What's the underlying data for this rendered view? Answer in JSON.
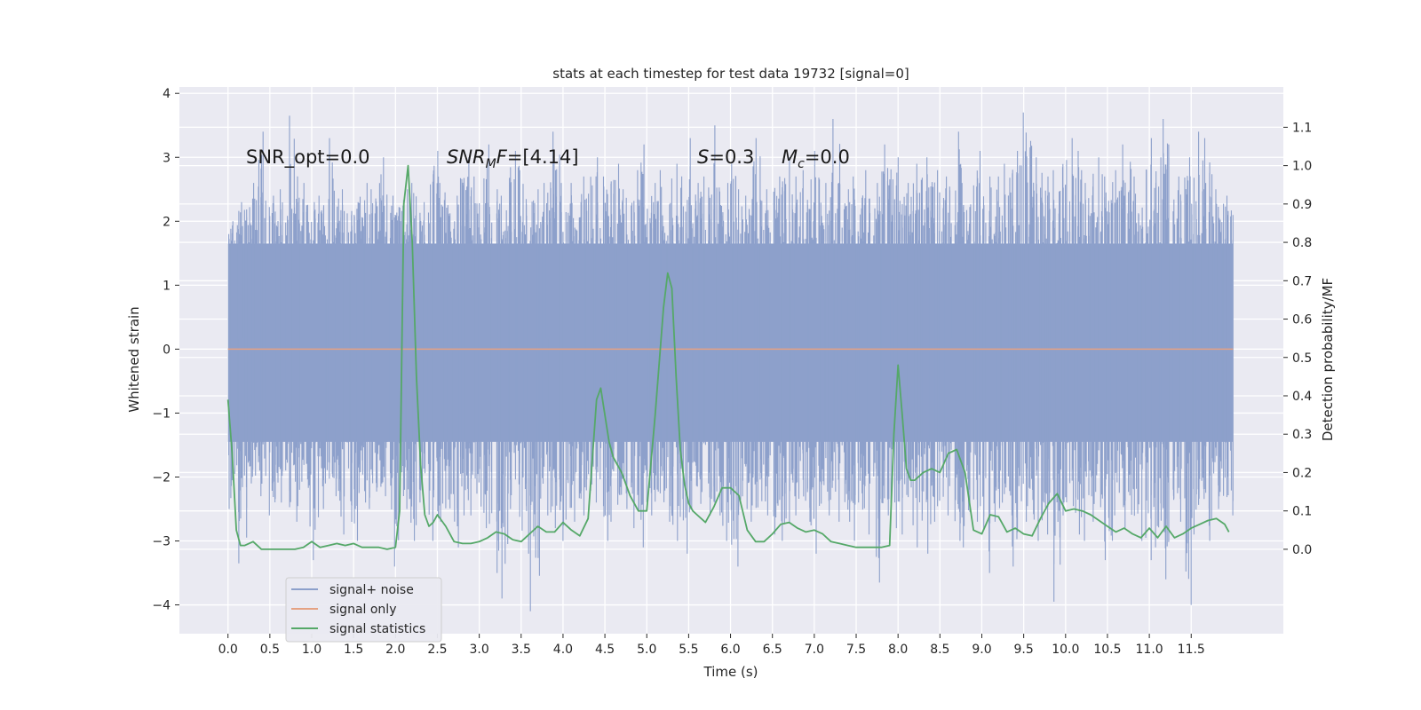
{
  "chart_data": {
    "type": "line",
    "title": "stats at each timestep for test data 19732 [signal=0]",
    "xlabel": "Time (s)",
    "ylabel": "Whitened strain",
    "y2label": "Detection probability/MF",
    "xlim": [
      -0.58,
      12.6
    ],
    "ylim": [
      -4.45,
      4.1
    ],
    "y2lim": [
      -0.22,
      1.205
    ],
    "xticks": [
      0.0,
      0.5,
      1.0,
      1.5,
      2.0,
      2.5,
      3.0,
      3.5,
      4.0,
      4.5,
      5.0,
      5.5,
      6.0,
      6.5,
      7.0,
      7.5,
      8.0,
      8.5,
      9.0,
      9.5,
      10.0,
      10.5,
      11.0,
      11.5
    ],
    "xtick_labels": [
      "0.0",
      "0.5",
      "1.0",
      "1.5",
      "2.0",
      "2.5",
      "3.0",
      "3.5",
      "4.0",
      "4.5",
      "5.0",
      "5.5",
      "6.0",
      "6.5",
      "7.0",
      "7.5",
      "8.0",
      "8.5",
      "9.0",
      "9.5",
      "10.0",
      "10.5",
      "11.0",
      "11.5"
    ],
    "yticks": [
      4,
      3,
      2,
      1,
      0,
      -1,
      -2,
      -3,
      -4
    ],
    "ytick_labels": [
      "4",
      "3",
      "2",
      "1",
      "0",
      "−1",
      "−2",
      "−3",
      "−4"
    ],
    "y2ticks": [
      1.1,
      1.0,
      0.9,
      0.8,
      0.7,
      0.6,
      0.5,
      0.4,
      0.3,
      0.2,
      0.1,
      0.0
    ],
    "y2tick_labels": [
      "1.1",
      "1.0",
      "0.9",
      "0.8",
      "0.7",
      "0.6",
      "0.5",
      "0.4",
      "0.3",
      "0.2",
      "0.1",
      "0.0"
    ],
    "annotations": {
      "snr_opt": "SNR_opt=0.0",
      "snr_mf_main": "SNR",
      "snr_mf_sub": "M",
      "snr_mf_rest": "F=[4.14]",
      "s_sym": "S",
      "s_val": "=0.3",
      "mc_sym": "M",
      "mc_sub": "c",
      "mc_val": "=0.0"
    },
    "legend": {
      "position": "lower-left",
      "entries": [
        "signal+ noise",
        "signal only",
        "signal statistics"
      ]
    },
    "series": [
      {
        "name": "signal+ noise",
        "color": "#8da0cb",
        "style": "noise-band",
        "t_range": [
          0.0,
          12.0
        ],
        "band_upper": 1.65,
        "band_lower": -1.45,
        "envelope_upper": [
          2.0,
          2.3,
          2.6,
          3.4,
          2.4,
          2.5,
          3.65,
          2.6,
          2.3,
          2.4,
          3.3,
          2.5,
          2.3,
          2.6,
          2.5,
          3.0,
          2.4,
          2.5,
          2.6,
          2.3,
          3.1,
          2.6,
          2.4,
          3.0,
          2.7,
          3.2,
          2.5,
          2.4,
          3.1,
          2.8,
          2.5,
          2.6,
          3.4,
          2.6,
          2.6,
          2.7,
          3.0,
          2.7,
          2.9,
          2.5,
          2.8,
          3.2,
          2.6,
          2.8,
          2.9,
          3.3,
          2.6,
          2.7,
          3.5,
          2.6,
          2.9,
          2.4,
          3.3,
          2.5,
          2.7,
          3.0,
          2.7,
          2.8,
          3.1,
          2.6,
          3.6,
          2.5,
          2.7,
          2.8,
          2.6,
          3.2,
          3.0,
          2.6,
          2.9,
          3.0,
          2.8,
          2.7,
          3.4,
          2.6,
          3.1,
          2.7,
          2.7,
          2.9,
          3.1,
          3.7,
          3.0,
          2.7,
          2.8,
          3.3,
          3.1,
          2.6,
          3.0,
          2.7,
          2.8,
          3.2,
          2.7,
          3.3,
          3.0,
          3.6,
          2.7,
          3.0,
          3.4,
          3.3,
          2.5,
          2.4
        ],
        "envelope_lower": [
          -2.5,
          -3.35,
          -2.1,
          -2.3,
          -2.6,
          -2.4,
          -2.7,
          -2.2,
          -3.3,
          -2.5,
          -2.3,
          -2.9,
          -3.0,
          -2.4,
          -2.5,
          -2.3,
          -3.4,
          -2.5,
          -3.0,
          -2.4,
          -3.0,
          -2.7,
          -3.1,
          -2.6,
          -2.6,
          -2.8,
          -3.5,
          -3.9,
          -2.5,
          -3.2,
          -4.1,
          -2.6,
          -2.8,
          -3.0,
          -2.7,
          -2.6,
          -2.4,
          -3.0,
          -2.7,
          -2.5,
          -2.8,
          -3.1,
          -2.6,
          -2.7,
          -3.0,
          -3.2,
          -2.5,
          -2.6,
          -2.6,
          -3.0,
          -3.4,
          -2.5,
          -2.7,
          -2.6,
          -2.9,
          -3.0,
          -2.6,
          -2.7,
          -3.2,
          -2.6,
          -2.7,
          -2.7,
          -3.0,
          -2.9,
          -3.65,
          -2.6,
          -2.8,
          -2.9,
          -3.1,
          -3.2,
          -2.7,
          -2.6,
          -3.0,
          -3.1,
          -2.7,
          -3.5,
          -2.7,
          -2.6,
          -3.4,
          -2.7,
          -3.0,
          -2.9,
          -3.95,
          -2.6,
          -2.9,
          -3.0,
          -2.7,
          -3.3,
          -2.6,
          -2.8,
          -3.0,
          -3.3,
          -3.1,
          -3.6,
          -2.7,
          -4.0,
          -2.9,
          -3.0,
          -2.5,
          -2.6
        ]
      },
      {
        "name": "signal only",
        "color": "#e5a283",
        "t": [
          0.0,
          12.0
        ],
        "y": [
          0.0,
          0.0
        ]
      },
      {
        "name": "signal statistics",
        "color": "#55a868",
        "axis": "right",
        "t": [
          0.0,
          0.05,
          0.1,
          0.15,
          0.2,
          0.25,
          0.3,
          0.4,
          0.5,
          0.6,
          0.7,
          0.8,
          0.9,
          1.0,
          1.1,
          1.2,
          1.3,
          1.4,
          1.5,
          1.6,
          1.7,
          1.8,
          1.9,
          2.0,
          2.05,
          2.1,
          2.15,
          2.2,
          2.25,
          2.3,
          2.35,
          2.4,
          2.45,
          2.5,
          2.6,
          2.7,
          2.8,
          2.9,
          3.0,
          3.1,
          3.2,
          3.3,
          3.4,
          3.5,
          3.6,
          3.7,
          3.8,
          3.9,
          4.0,
          4.1,
          4.2,
          4.3,
          4.4,
          4.45,
          4.5,
          4.55,
          4.6,
          4.65,
          4.7,
          4.8,
          4.9,
          5.0,
          5.1,
          5.2,
          5.25,
          5.3,
          5.35,
          5.4,
          5.45,
          5.5,
          5.55,
          5.6,
          5.7,
          5.8,
          5.9,
          6.0,
          6.1,
          6.2,
          6.3,
          6.4,
          6.5,
          6.6,
          6.7,
          6.8,
          6.9,
          7.0,
          7.1,
          7.2,
          7.3,
          7.4,
          7.5,
          7.6,
          7.7,
          7.8,
          7.9,
          7.95,
          8.0,
          8.05,
          8.1,
          8.15,
          8.2,
          8.3,
          8.4,
          8.5,
          8.6,
          8.7,
          8.8,
          8.9,
          9.0,
          9.1,
          9.2,
          9.3,
          9.4,
          9.5,
          9.6,
          9.7,
          9.8,
          9.9,
          10.0,
          10.1,
          10.2,
          10.3,
          10.4,
          10.5,
          10.6,
          10.7,
          10.8,
          10.9,
          11.0,
          11.1,
          11.2,
          11.3,
          11.4,
          11.5,
          11.6,
          11.7,
          11.8,
          11.9,
          11.95
        ],
        "y": [
          0.39,
          0.25,
          0.05,
          0.01,
          0.01,
          0.015,
          0.02,
          0.0,
          0.0,
          0.0,
          0.0,
          0.0,
          0.005,
          0.02,
          0.005,
          0.01,
          0.015,
          0.01,
          0.015,
          0.005,
          0.005,
          0.005,
          0.0,
          0.005,
          0.1,
          0.9,
          1.0,
          0.8,
          0.45,
          0.22,
          0.09,
          0.06,
          0.07,
          0.09,
          0.06,
          0.02,
          0.015,
          0.015,
          0.02,
          0.03,
          0.045,
          0.04,
          0.025,
          0.02,
          0.04,
          0.06,
          0.045,
          0.045,
          0.07,
          0.05,
          0.035,
          0.08,
          0.39,
          0.42,
          0.35,
          0.28,
          0.24,
          0.22,
          0.2,
          0.14,
          0.1,
          0.1,
          0.35,
          0.63,
          0.72,
          0.68,
          0.45,
          0.26,
          0.17,
          0.12,
          0.1,
          0.09,
          0.07,
          0.11,
          0.16,
          0.16,
          0.14,
          0.05,
          0.02,
          0.02,
          0.04,
          0.065,
          0.07,
          0.055,
          0.045,
          0.05,
          0.04,
          0.02,
          0.015,
          0.01,
          0.005,
          0.005,
          0.005,
          0.005,
          0.01,
          0.3,
          0.48,
          0.35,
          0.21,
          0.18,
          0.18,
          0.2,
          0.21,
          0.2,
          0.25,
          0.26,
          0.2,
          0.05,
          0.04,
          0.09,
          0.085,
          0.045,
          0.055,
          0.04,
          0.035,
          0.08,
          0.12,
          0.145,
          0.1,
          0.105,
          0.1,
          0.09,
          0.075,
          0.06,
          0.045,
          0.055,
          0.04,
          0.03,
          0.055,
          0.03,
          0.06,
          0.03,
          0.04,
          0.055,
          0.065,
          0.075,
          0.08,
          0.065,
          0.045
        ]
      }
    ]
  }
}
